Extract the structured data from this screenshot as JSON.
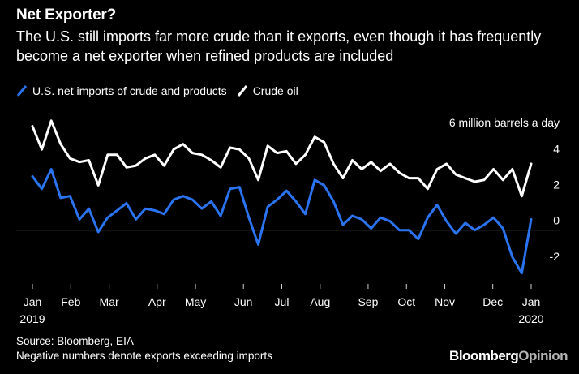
{
  "header": {
    "title": "Net Exporter?",
    "subtitle": "The U.S. still imports far more crude than it exports, even though it has frequently become a net exporter when refined products are included"
  },
  "legend": [
    {
      "label": "U.S. net imports of crude and products",
      "color": "#2a74f2"
    },
    {
      "label": "Crude oil",
      "color": "#ffffff"
    }
  ],
  "footer": {
    "source_line1": "Source: Bloomberg, EIA",
    "source_line2": "Negative numbers denote exports exceeding imports",
    "brand_main": "Bloomberg",
    "brand_accent": "Opinion"
  },
  "chart_data": {
    "type": "line",
    "unit_label": "6 million barrels a day",
    "ylim": [
      -3,
      6.5
    ],
    "y_ticks": [
      4,
      2,
      0,
      -2
    ],
    "zero_line": true,
    "x_ticks": [
      {
        "label": "Jan",
        "sub": "2019",
        "week": 0
      },
      {
        "label": "Feb",
        "sub": "",
        "week": 4
      },
      {
        "label": "Mar",
        "sub": "",
        "week": 8
      },
      {
        "label": "Apr",
        "sub": "",
        "week": 13
      },
      {
        "label": "May",
        "sub": "",
        "week": 17
      },
      {
        "label": "Jun",
        "sub": "",
        "week": 22
      },
      {
        "label": "Jul",
        "sub": "",
        "week": 26
      },
      {
        "label": "Aug",
        "sub": "",
        "week": 30
      },
      {
        "label": "Sep",
        "sub": "",
        "week": 35
      },
      {
        "label": "Oct",
        "sub": "",
        "week": 39
      },
      {
        "label": "Nov",
        "sub": "",
        "week": 43
      },
      {
        "label": "Dec",
        "sub": "",
        "week": 48
      },
      {
        "label": "Jan",
        "sub": "2020",
        "week": 52
      }
    ],
    "x_range": [
      0,
      52
    ],
    "series": [
      {
        "name": "Crude oil",
        "color": "#ffffff",
        "values": [
          5.8,
          4.5,
          6.1,
          4.8,
          4.0,
          3.8,
          3.9,
          2.5,
          4.2,
          4.2,
          3.5,
          3.6,
          4.0,
          4.2,
          3.6,
          4.5,
          4.8,
          4.3,
          4.2,
          3.9,
          3.5,
          4.6,
          4.5,
          4.0,
          2.8,
          4.7,
          4.3,
          4.4,
          3.7,
          4.2,
          5.2,
          4.9,
          3.7,
          2.9,
          3.9,
          3.4,
          3.8,
          3.3,
          3.7,
          3.2,
          2.9,
          2.9,
          2.3,
          3.4,
          3.7,
          3.1,
          2.9,
          2.7,
          2.8,
          3.4,
          2.8,
          3.4,
          1.9,
          3.7
        ]
      },
      {
        "name": "U.S. net imports of crude and products",
        "color": "#2a74f2",
        "values": [
          3.0,
          2.3,
          3.4,
          1.8,
          1.9,
          0.6,
          1.2,
          -0.1,
          0.7,
          1.1,
          1.5,
          0.6,
          1.2,
          1.1,
          0.9,
          1.7,
          1.9,
          1.7,
          1.2,
          1.6,
          0.8,
          2.3,
          2.4,
          0.7,
          -0.8,
          1.3,
          1.7,
          2.2,
          1.6,
          0.9,
          2.8,
          2.5,
          1.6,
          0.3,
          0.8,
          0.6,
          0.1,
          0.7,
          0.5,
          0.0,
          0.0,
          -0.5,
          0.7,
          1.4,
          0.5,
          -0.2,
          0.4,
          0.0,
          0.3,
          0.7,
          0.1,
          -1.5,
          -2.4,
          0.6
        ]
      }
    ]
  }
}
